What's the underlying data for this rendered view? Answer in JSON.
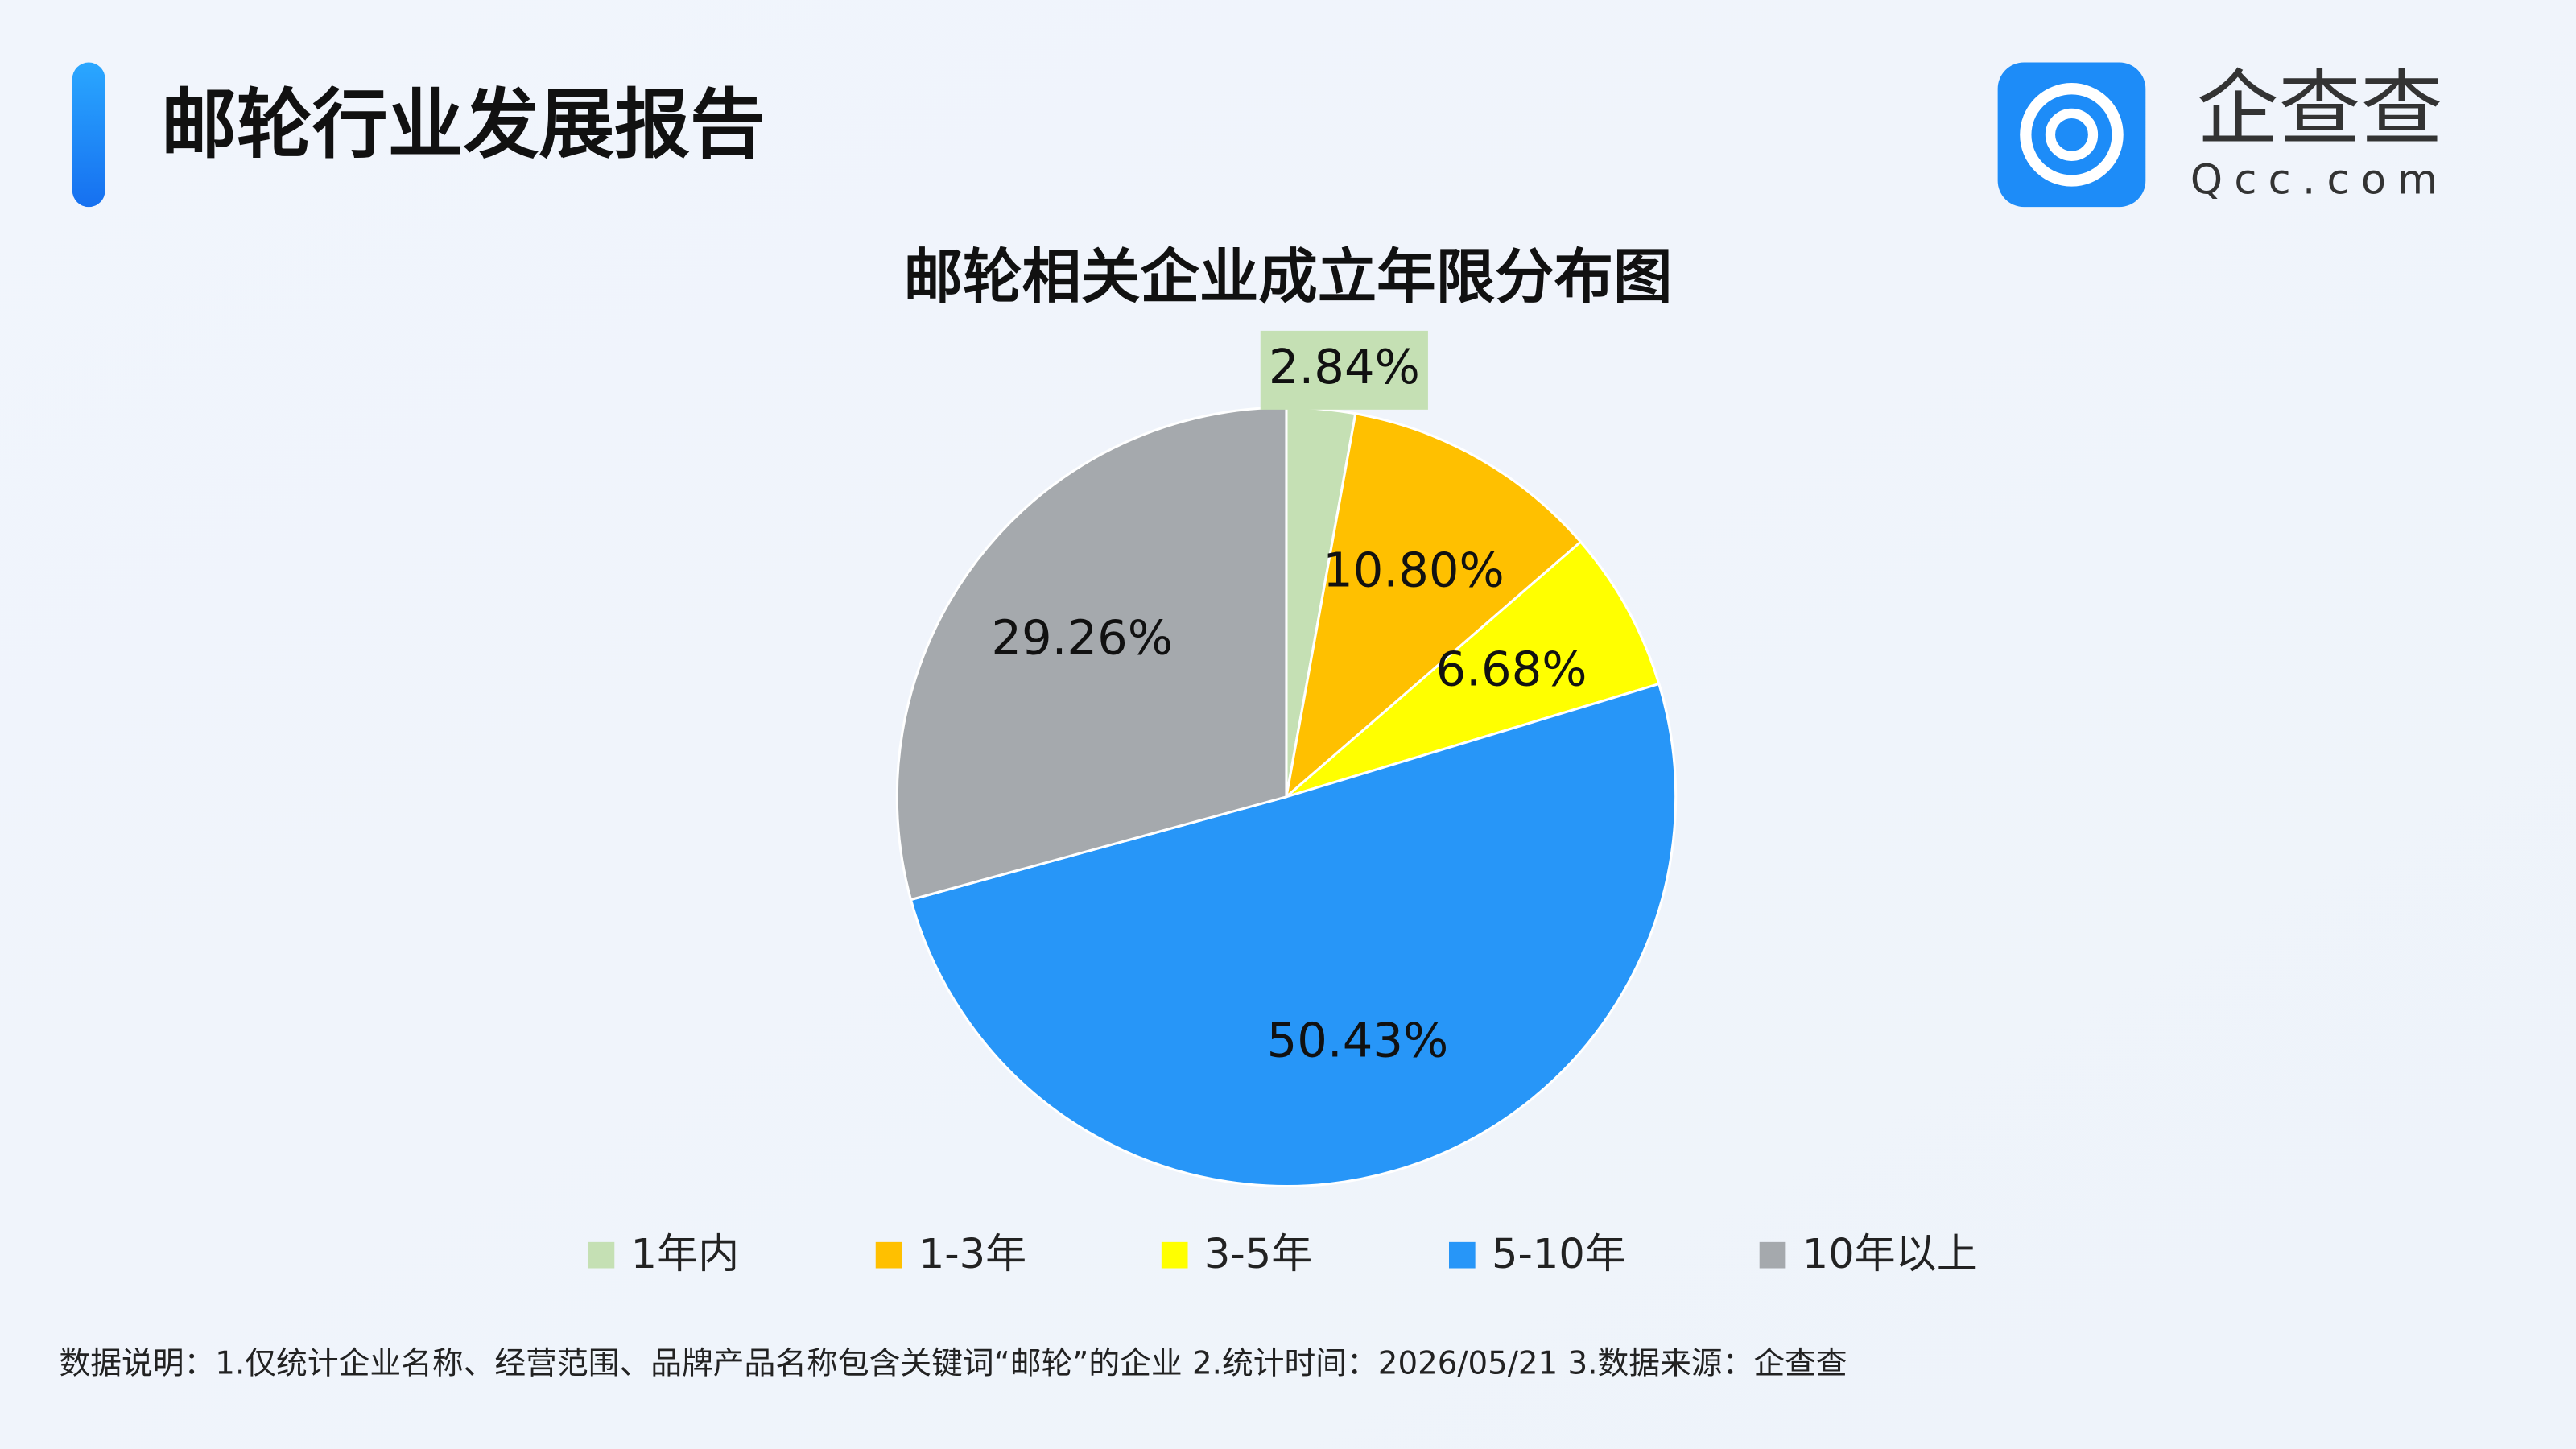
{
  "header": {
    "title": "邮轮行业发展报告",
    "logo_name": "企查查",
    "logo_domain": "Qcc.com"
  },
  "chart_data": {
    "type": "pie",
    "title": "邮轮相关企业成立年限分布图",
    "categories": [
      "1年内",
      "1-3年",
      "3-5年",
      "5-10年",
      "10年以上"
    ],
    "values": [
      2.84,
      10.8,
      6.68,
      50.43,
      29.26
    ],
    "value_labels": [
      "2.84%",
      "10.80%",
      "6.68%",
      "50.43%",
      "29.26%"
    ],
    "colors": [
      "#c5e0b4",
      "#ffc000",
      "#ffff00",
      "#2796f8",
      "#a5a9ad"
    ],
    "legend": "bottom"
  },
  "footer": {
    "note": "数据说明：1.仅统计企业名称、经营范围、品牌产品名称包含关键词“邮轮”的企业   2.统计时间：2026/05/21    3.数据来源：企查查"
  }
}
